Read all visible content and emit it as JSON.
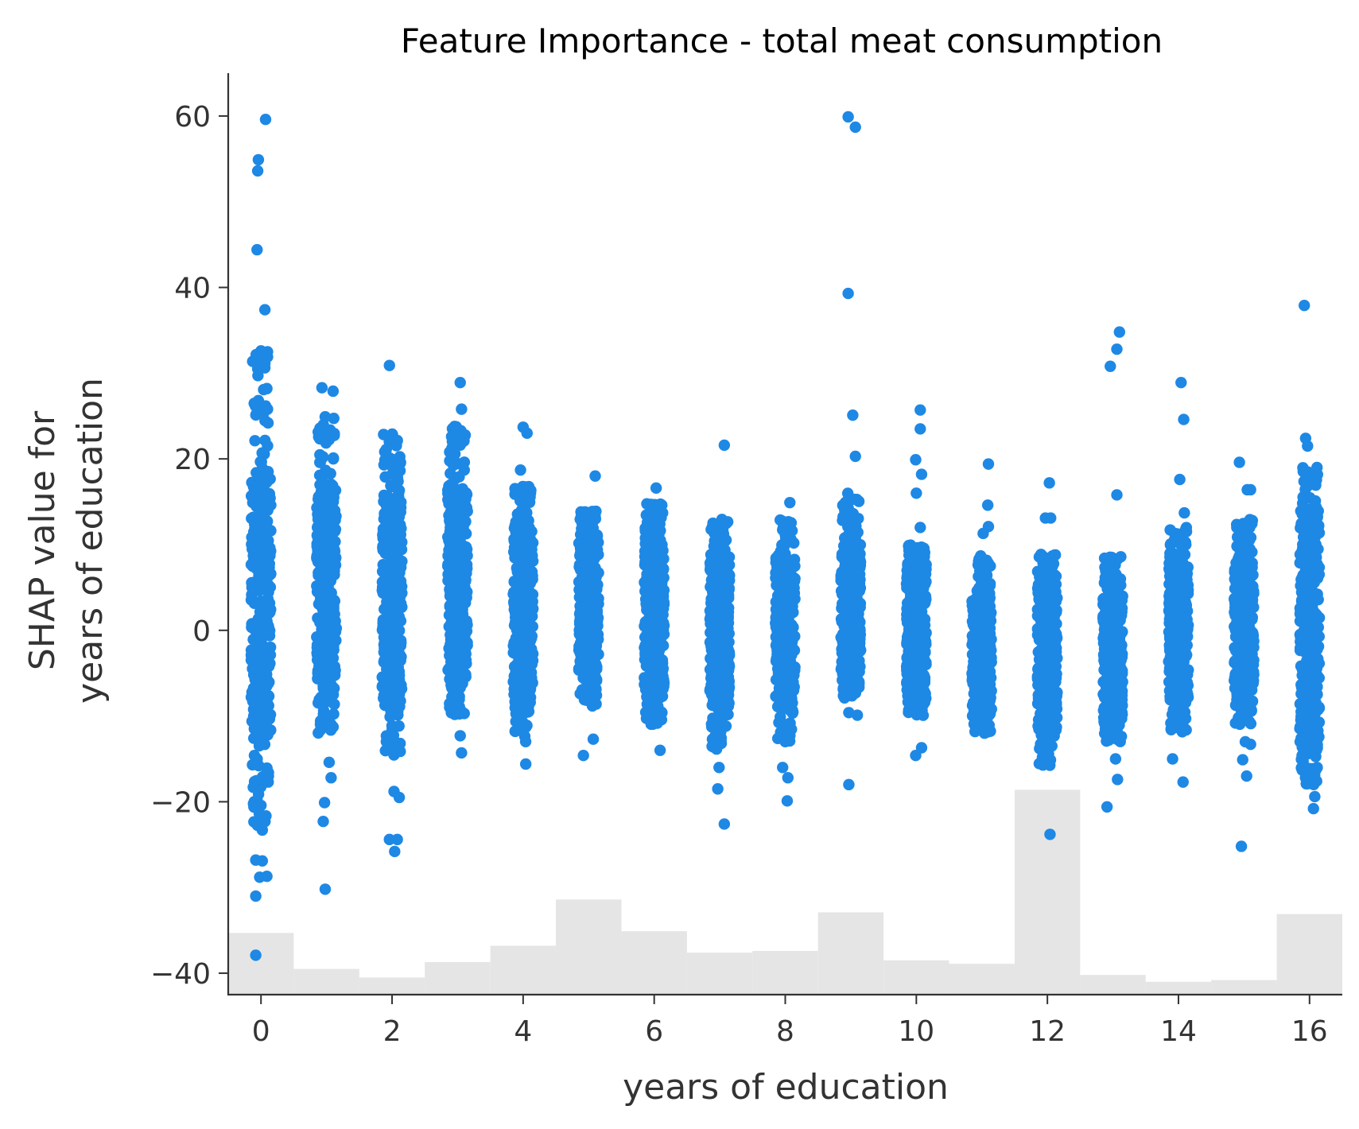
{
  "chart_data": {
    "type": "scatter",
    "title": "Feature Importance - total meat consumption",
    "xlabel": "years of education",
    "ylabel_lines": [
      "SHAP value for",
      "years of education"
    ],
    "xlim": [
      -0.5,
      16.5
    ],
    "ylim": [
      -42.5,
      65
    ],
    "xticks": [
      0,
      2,
      4,
      6,
      8,
      10,
      12,
      14,
      16
    ],
    "yticks": [
      -40,
      -20,
      0,
      20,
      40,
      60
    ],
    "ytick_labels": [
      "−40",
      "−20",
      "0",
      "20",
      "40",
      "60"
    ],
    "grid": false,
    "point_color": "#1E88E5",
    "histogram_color": "#E5E5E5",
    "histogram": {
      "bin_edges": [
        -0.5,
        0.5,
        1.5,
        2.5,
        3.5,
        4.5,
        5.5,
        6.5,
        7.5,
        8.5,
        9.5,
        10.5,
        11.5,
        12.5,
        13.5,
        14.5,
        15.5,
        16.5
      ],
      "heights_in_y_units": [
        7.2,
        3.0,
        2.0,
        3.8,
        5.7,
        11.1,
        7.4,
        4.9,
        5.1,
        9.6,
        4.0,
        3.6,
        23.9,
        2.3,
        1.5,
        1.7,
        9.4
      ]
    },
    "series": [
      {
        "columns": [
          {
            "x": 0,
            "core_min": -13,
            "core_max": 18,
            "outer_min": -23,
            "outer_max": 33
          },
          {
            "x": 1,
            "core_min": -6,
            "core_max": 17,
            "outer_min": -12,
            "outer_max": 25
          },
          {
            "x": 2,
            "core_min": -8,
            "core_max": 16,
            "outer_min": -15,
            "outer_max": 23
          },
          {
            "x": 3,
            "core_min": -6,
            "core_max": 17,
            "outer_min": -10,
            "outer_max": 24
          },
          {
            "x": 4,
            "core_min": -8,
            "core_max": 12,
            "outer_min": -13,
            "outer_max": 17
          },
          {
            "x": 5,
            "core_min": -5,
            "core_max": 11,
            "outer_min": -9,
            "outer_max": 14
          },
          {
            "x": 6,
            "core_min": -7,
            "core_max": 12,
            "outer_min": -11,
            "outer_max": 15
          },
          {
            "x": 7,
            "core_min": -9,
            "core_max": 9,
            "outer_min": -14,
            "outer_max": 13
          },
          {
            "x": 8,
            "core_min": -8,
            "core_max": 9,
            "outer_min": -13,
            "outer_max": 13
          },
          {
            "x": 9,
            "core_min": -5,
            "core_max": 10,
            "outer_min": -8,
            "outer_max": 16
          },
          {
            "x": 10,
            "core_min": -8,
            "core_max": 8,
            "outer_min": -10,
            "outer_max": 10
          },
          {
            "x": 11,
            "core_min": -10,
            "core_max": 4,
            "outer_min": -12,
            "outer_max": 9
          },
          {
            "x": 12,
            "core_min": -12,
            "core_max": 7,
            "outer_min": -16,
            "outer_max": 9
          },
          {
            "x": 13,
            "core_min": -11,
            "core_max": 4,
            "outer_min": -13,
            "outer_max": 9
          },
          {
            "x": 14,
            "core_min": -8,
            "core_max": 8,
            "outer_min": -12,
            "outer_max": 12
          },
          {
            "x": 15,
            "core_min": -7,
            "core_max": 8,
            "outer_min": -11,
            "outer_max": 13
          },
          {
            "x": 16,
            "core_min": -13,
            "core_max": 14,
            "outer_min": -18,
            "outer_max": 19
          }
        ],
        "outliers": [
          {
            "x": -0.05,
            "y": 53.6
          },
          {
            "x": -0.04,
            "y": 54.9
          },
          {
            "x": 0.07,
            "y": 59.6
          },
          {
            "x": -0.06,
            "y": 44.4
          },
          {
            "x": 0.06,
            "y": 37.4
          },
          {
            "x": 0.0,
            "y": 32.6
          },
          {
            "x": -0.05,
            "y": 30.5
          },
          {
            "x": 0.1,
            "y": 31.9
          },
          {
            "x": 0.09,
            "y": 28.2
          },
          {
            "x": -0.04,
            "y": 26.8
          },
          {
            "x": 0.1,
            "y": 25.8
          },
          {
            "x": -0.08,
            "y": -26.8
          },
          {
            "x": 0.02,
            "y": -26.9
          },
          {
            "x": -0.02,
            "y": -28.8
          },
          {
            "x": 0.09,
            "y": -28.7
          },
          {
            "x": -0.08,
            "y": -31.0
          },
          {
            "x": -0.08,
            "y": -37.9
          },
          {
            "x": 0.02,
            "y": -23.3
          },
          {
            "x": 0.93,
            "y": 28.3
          },
          {
            "x": 1.1,
            "y": 27.9
          },
          {
            "x": 0.97,
            "y": -20.1
          },
          {
            "x": 0.95,
            "y": -22.3
          },
          {
            "x": 0.98,
            "y": -30.2
          },
          {
            "x": 1.07,
            "y": -17.2
          },
          {
            "x": 1.04,
            "y": -15.4
          },
          {
            "x": 1.96,
            "y": 30.9
          },
          {
            "x": 1.96,
            "y": -24.4
          },
          {
            "x": 2.04,
            "y": -25.8
          },
          {
            "x": 2.08,
            "y": -24.4
          },
          {
            "x": 2.03,
            "y": -18.8
          },
          {
            "x": 2.11,
            "y": -19.5
          },
          {
            "x": 3.04,
            "y": 28.9
          },
          {
            "x": 3.06,
            "y": 25.8
          },
          {
            "x": 3.06,
            "y": -14.3
          },
          {
            "x": 3.04,
            "y": -12.3
          },
          {
            "x": 4.0,
            "y": 23.7
          },
          {
            "x": 4.06,
            "y": 23.0
          },
          {
            "x": 3.96,
            "y": 18.7
          },
          {
            "x": 4.04,
            "y": -15.6
          },
          {
            "x": 5.1,
            "y": 18.0
          },
          {
            "x": 4.92,
            "y": -14.6
          },
          {
            "x": 5.07,
            "y": -12.7
          },
          {
            "x": 6.03,
            "y": 16.6
          },
          {
            "x": 6.09,
            "y": -14.0
          },
          {
            "x": 7.07,
            "y": 21.6
          },
          {
            "x": 7.07,
            "y": -22.6
          },
          {
            "x": 6.97,
            "y": -18.5
          },
          {
            "x": 6.99,
            "y": -16.0
          },
          {
            "x": 8.07,
            "y": 14.9
          },
          {
            "x": 8.03,
            "y": -19.9
          },
          {
            "x": 7.96,
            "y": -16.0
          },
          {
            "x": 8.04,
            "y": -17.2
          },
          {
            "x": 8.96,
            "y": 59.9
          },
          {
            "x": 9.07,
            "y": 58.7
          },
          {
            "x": 8.96,
            "y": 39.3
          },
          {
            "x": 9.03,
            "y": 25.1
          },
          {
            "x": 9.07,
            "y": 20.3
          },
          {
            "x": 8.97,
            "y": -18.0
          },
          {
            "x": 9.1,
            "y": -9.9
          },
          {
            "x": 8.97,
            "y": -9.6
          },
          {
            "x": 10.06,
            "y": 25.7
          },
          {
            "x": 10.06,
            "y": 23.5
          },
          {
            "x": 9.99,
            "y": 19.9
          },
          {
            "x": 10.08,
            "y": 18.2
          },
          {
            "x": 10.0,
            "y": 16.0
          },
          {
            "x": 10.06,
            "y": 12.0
          },
          {
            "x": 9.99,
            "y": -14.6
          },
          {
            "x": 10.08,
            "y": -13.7
          },
          {
            "x": 11.1,
            "y": 19.4
          },
          {
            "x": 11.09,
            "y": 14.6
          },
          {
            "x": 11.1,
            "y": 12.1
          },
          {
            "x": 11.02,
            "y": 11.3
          },
          {
            "x": 12.03,
            "y": 17.2
          },
          {
            "x": 11.97,
            "y": 13.1
          },
          {
            "x": 12.05,
            "y": 13.1
          },
          {
            "x": 12.04,
            "y": -23.8
          },
          {
            "x": 13.1,
            "y": 34.8
          },
          {
            "x": 13.06,
            "y": 32.8
          },
          {
            "x": 12.96,
            "y": 30.8
          },
          {
            "x": 13.06,
            "y": 15.8
          },
          {
            "x": 12.91,
            "y": -20.6
          },
          {
            "x": 13.07,
            "y": -17.4
          },
          {
            "x": 13.04,
            "y": -15.0
          },
          {
            "x": 14.04,
            "y": 28.9
          },
          {
            "x": 14.08,
            "y": 24.6
          },
          {
            "x": 14.02,
            "y": 17.6
          },
          {
            "x": 14.09,
            "y": 13.7
          },
          {
            "x": 13.91,
            "y": -15.0
          },
          {
            "x": 14.07,
            "y": -17.7
          },
          {
            "x": 14.93,
            "y": 19.6
          },
          {
            "x": 15.05,
            "y": 16.4
          },
          {
            "x": 15.1,
            "y": 16.4
          },
          {
            "x": 14.96,
            "y": -25.2
          },
          {
            "x": 15.04,
            "y": -17.0
          },
          {
            "x": 14.98,
            "y": -15.1
          },
          {
            "x": 15.02,
            "y": -13.0
          },
          {
            "x": 15.1,
            "y": -13.3
          },
          {
            "x": 15.92,
            "y": 37.9
          },
          {
            "x": 15.94,
            "y": 22.4
          },
          {
            "x": 15.97,
            "y": 21.5
          },
          {
            "x": 16.06,
            "y": -20.8
          },
          {
            "x": 16.08,
            "y": -19.4
          },
          {
            "x": 15.95,
            "y": -17.9
          }
        ]
      }
    ]
  }
}
